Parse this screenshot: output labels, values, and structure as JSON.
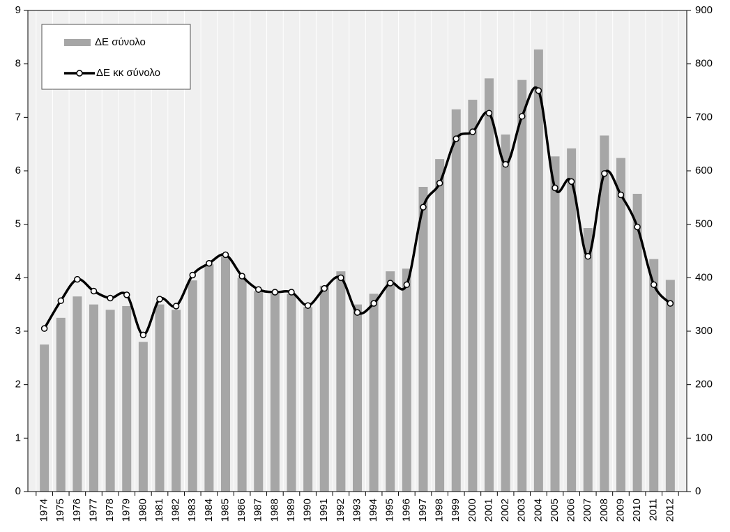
{
  "chart_data": {
    "type": "bar_line",
    "categories": [
      "1974",
      "1975",
      "1976",
      "1977",
      "1978",
      "1979",
      "1980",
      "1981",
      "1982",
      "1983",
      "1984",
      "1985",
      "1986",
      "1987",
      "1988",
      "1989",
      "1990",
      "1991",
      "1992",
      "1993",
      "1994",
      "1995",
      "1996",
      "1997",
      "1998",
      "1999",
      "2000",
      "2001",
      "2002",
      "2003",
      "2004",
      "2005",
      "2006",
      "2007",
      "2008",
      "2009",
      "2010",
      "2011",
      "2012"
    ],
    "series": [
      {
        "name": "ΔΕ σύνολο",
        "type": "bar",
        "color": "#a6a6a6",
        "axis": "y",
        "values": [
          2.75,
          3.25,
          3.65,
          3.5,
          3.4,
          3.47,
          2.8,
          3.5,
          3.4,
          3.95,
          4.25,
          4.4,
          4.0,
          3.75,
          3.7,
          3.7,
          3.45,
          3.85,
          4.12,
          3.5,
          3.7,
          4.12,
          4.17,
          5.7,
          6.22,
          7.15,
          7.33,
          7.73,
          6.68,
          7.7,
          8.27,
          6.27,
          6.42,
          4.93,
          6.66,
          6.24,
          5.57,
          4.35,
          3.96
        ]
      },
      {
        "name": "ΔΕ κκ σύνολο",
        "type": "line",
        "color": "#000000",
        "axis": "y2",
        "values": [
          305,
          357,
          397,
          375,
          362,
          368,
          293,
          360,
          347,
          405,
          427,
          443,
          403,
          378,
          373,
          373,
          348,
          380,
          400,
          335,
          352,
          390,
          387,
          532,
          577,
          660,
          673,
          708,
          612,
          702,
          750,
          568,
          580,
          440,
          595,
          555,
          495,
          387,
          352
        ]
      }
    ],
    "ylim": [
      0,
      9
    ],
    "yticks": [
      0,
      1,
      2,
      3,
      4,
      5,
      6,
      7,
      8,
      9
    ],
    "y2lim": [
      0,
      900
    ],
    "y2ticks": [
      0,
      100,
      200,
      300,
      400,
      500,
      600,
      700,
      800,
      900
    ],
    "grid": true,
    "legend": "upper left"
  }
}
